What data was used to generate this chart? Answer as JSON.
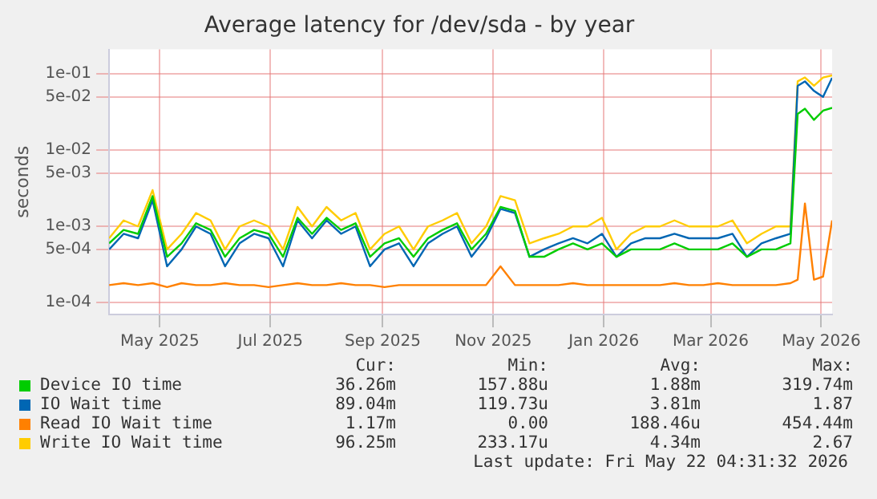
{
  "chart_data": {
    "type": "line",
    "title": "Average latency for /dev/sda - by year",
    "ylabel": "seconds",
    "log": true,
    "grid": true,
    "legend": "bottom",
    "marker": "none",
    "line_style": "solid",
    "x": [
      "2025-04-18",
      "2025-04-26",
      "2025-05-04",
      "2025-05-12",
      "2025-05-20",
      "2025-05-28",
      "2025-06-05",
      "2025-06-13",
      "2025-06-21",
      "2025-06-29",
      "2025-07-07",
      "2025-07-15",
      "2025-07-23",
      "2025-07-31",
      "2025-08-08",
      "2025-08-16",
      "2025-08-24",
      "2025-09-01",
      "2025-09-09",
      "2025-09-17",
      "2025-09-25",
      "2025-10-03",
      "2025-10-11",
      "2025-10-19",
      "2025-10-27",
      "2025-11-04",
      "2025-11-12",
      "2025-11-20",
      "2025-11-28",
      "2025-12-06",
      "2025-12-14",
      "2025-12-22",
      "2025-12-30",
      "2026-01-07",
      "2026-01-15",
      "2026-01-23",
      "2026-01-31",
      "2026-02-08",
      "2026-02-16",
      "2026-02-24",
      "2026-03-04",
      "2026-03-12",
      "2026-03-20",
      "2026-03-28",
      "2026-04-05",
      "2026-04-13",
      "2026-04-21",
      "2026-04-29",
      "2026-05-03",
      "2026-05-07",
      "2026-05-12",
      "2026-05-17",
      "2026-05-22"
    ],
    "xlim": [
      "2025-04-18",
      "2026-05-22"
    ],
    "xticks": [
      {
        "value": "2025-05-16",
        "label": "May 2025"
      },
      {
        "value": "2025-07-16",
        "label": "Jul 2025"
      },
      {
        "value": "2025-09-16",
        "label": "Sep 2025"
      },
      {
        "value": "2025-11-16",
        "label": "Nov 2025"
      },
      {
        "value": "2026-01-16",
        "label": "Jan 2026"
      },
      {
        "value": "2026-03-16",
        "label": "Mar 2026"
      },
      {
        "value": "2026-05-16",
        "label": "May 2026"
      }
    ],
    "ylim": [
      7.3e-05,
      0.21
    ],
    "yticks": [
      {
        "value": 0.0001,
        "label": "1e-04"
      },
      {
        "value": 0.0005,
        "label": "5e-04"
      },
      {
        "value": 0.001,
        "label": "1e-03"
      },
      {
        "value": 0.005,
        "label": "5e-03"
      },
      {
        "value": 0.01,
        "label": "1e-02"
      },
      {
        "value": 0.05,
        "label": "5e-02"
      },
      {
        "value": 0.1,
        "label": "1e-01"
      }
    ],
    "series": [
      {
        "name": "Device IO time",
        "color": "#00cc00",
        "values": [
          0.0006,
          0.0009,
          0.0008,
          0.0025,
          0.0004,
          0.0006,
          0.0011,
          0.0009,
          0.0004,
          0.0007,
          0.0009,
          0.0008,
          0.0004,
          0.0013,
          0.0008,
          0.0013,
          0.0009,
          0.0011,
          0.0004,
          0.0006,
          0.0007,
          0.0004,
          0.0007,
          0.0009,
          0.0011,
          0.0005,
          0.0008,
          0.0018,
          0.0016,
          0.0004,
          0.0004,
          0.0005,
          0.0006,
          0.0005,
          0.0006,
          0.0004,
          0.0005,
          0.0005,
          0.0005,
          0.0006,
          0.0005,
          0.0005,
          0.0005,
          0.0006,
          0.0004,
          0.0005,
          0.0005,
          0.0006,
          0.03,
          0.035,
          0.025,
          0.033,
          0.036
        ]
      },
      {
        "name": "IO Wait time",
        "color": "#0066b3",
        "values": [
          0.0005,
          0.0008,
          0.0007,
          0.0022,
          0.0003,
          0.0005,
          0.001,
          0.0008,
          0.0003,
          0.0006,
          0.0008,
          0.0007,
          0.0003,
          0.0012,
          0.0007,
          0.0012,
          0.0008,
          0.001,
          0.0003,
          0.0005,
          0.0006,
          0.0003,
          0.0006,
          0.0008,
          0.001,
          0.0004,
          0.0007,
          0.0017,
          0.0015,
          0.0004,
          0.0005,
          0.0006,
          0.0007,
          0.0006,
          0.0008,
          0.0004,
          0.0006,
          0.0007,
          0.0007,
          0.0008,
          0.0007,
          0.0007,
          0.0007,
          0.0008,
          0.0004,
          0.0006,
          0.0007,
          0.0008,
          0.07,
          0.08,
          0.06,
          0.05,
          0.089
        ]
      },
      {
        "name": "Read IO Wait time",
        "color": "#ff8000",
        "values": [
          0.00017,
          0.00018,
          0.00017,
          0.00018,
          0.00016,
          0.00018,
          0.00017,
          0.00017,
          0.00018,
          0.00017,
          0.00017,
          0.00016,
          0.00017,
          0.00018,
          0.00017,
          0.00017,
          0.00018,
          0.00017,
          0.00017,
          0.00016,
          0.00017,
          0.00017,
          0.00017,
          0.00017,
          0.00017,
          0.00017,
          0.00017,
          0.0003,
          0.00017,
          0.00017,
          0.00017,
          0.00017,
          0.00018,
          0.00017,
          0.00017,
          0.00017,
          0.00017,
          0.00017,
          0.00017,
          0.00018,
          0.00017,
          0.00017,
          0.00018,
          0.00017,
          0.00017,
          0.00017,
          0.00017,
          0.00018,
          0.0002,
          0.002,
          0.0002,
          0.00022,
          0.0012
        ]
      },
      {
        "name": "Write IO Wait time",
        "color": "#ffcc00",
        "values": [
          0.0007,
          0.0012,
          0.001,
          0.003,
          0.0005,
          0.0008,
          0.0015,
          0.0012,
          0.0005,
          0.001,
          0.0012,
          0.001,
          0.0005,
          0.0018,
          0.001,
          0.0018,
          0.0012,
          0.0015,
          0.0005,
          0.0008,
          0.001,
          0.0005,
          0.001,
          0.0012,
          0.0015,
          0.0006,
          0.001,
          0.0025,
          0.0022,
          0.0006,
          0.0007,
          0.0008,
          0.001,
          0.001,
          0.0013,
          0.0005,
          0.0008,
          0.001,
          0.001,
          0.0012,
          0.001,
          0.001,
          0.001,
          0.0012,
          0.0006,
          0.0008,
          0.001,
          0.001,
          0.08,
          0.09,
          0.07,
          0.09,
          0.096
        ]
      }
    ],
    "annotations": [
      "Cur:",
      "Min:",
      "Avg:",
      "Max:",
      "36.26m",
      "157.88u",
      "1.88m",
      "319.74m",
      "89.04m",
      "119.73u",
      "3.81m",
      "1.87",
      "1.17m",
      "0.00",
      "188.46u",
      "454.44m",
      "96.25m",
      "233.17u",
      "4.34m",
      "2.67",
      "Last update: Fri May 22 04:31:32 2026"
    ]
  }
}
